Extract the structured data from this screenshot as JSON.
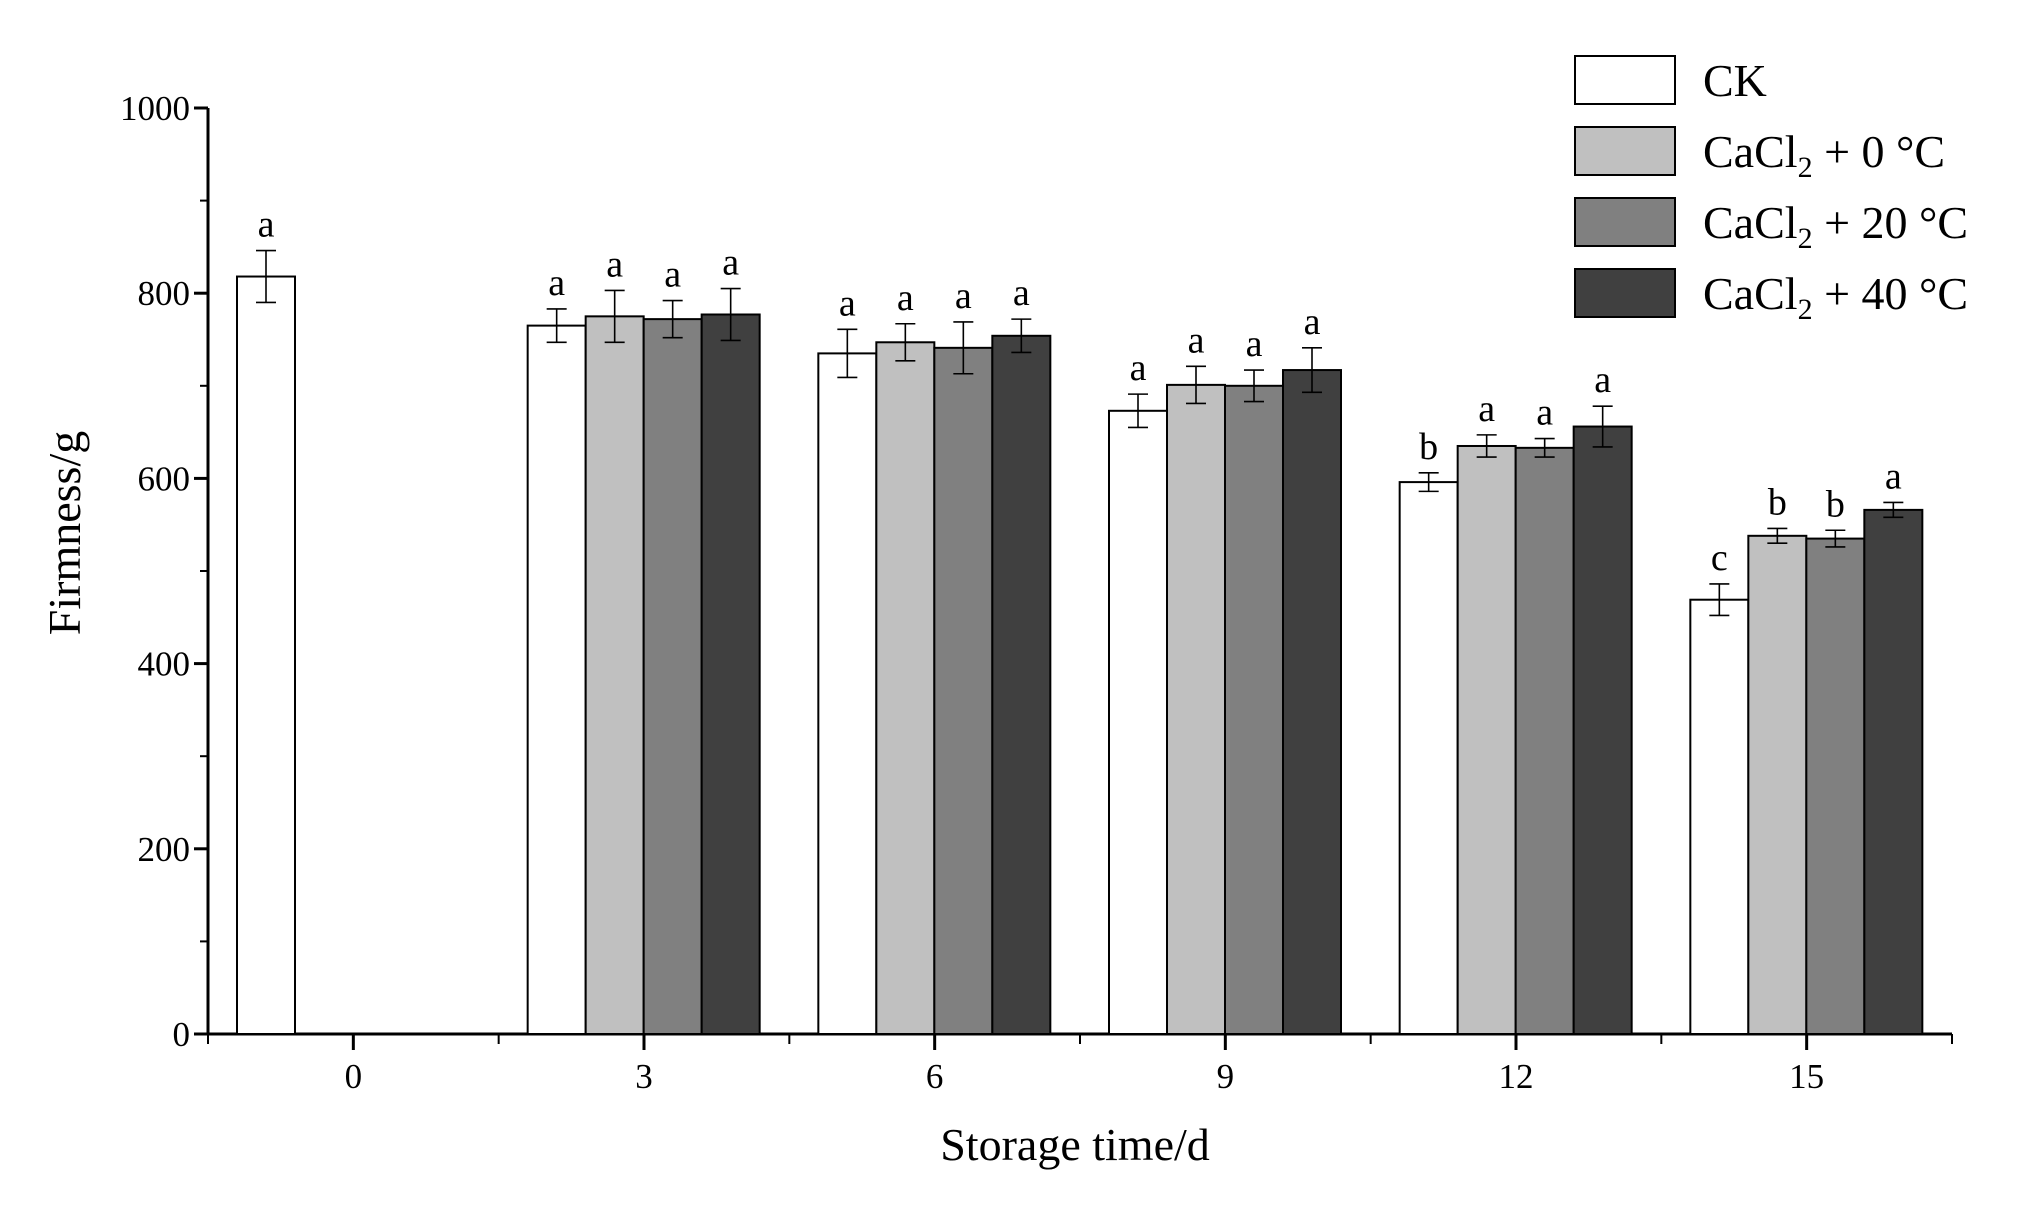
{
  "chart_data": {
    "type": "bar",
    "xlabel": "Storage time/d",
    "ylabel": "Firmness/g",
    "ylim": [
      0,
      1000
    ],
    "yticks": [
      "0",
      "200",
      "400",
      "600",
      "800",
      "1000"
    ],
    "categories": [
      "0",
      "3",
      "6",
      "9",
      "12",
      "15"
    ],
    "colors": [
      "#ffffff",
      "#c0c0c0",
      "#808080",
      "#404040"
    ],
    "legend_position": "top-right",
    "series": [
      {
        "name": "CK",
        "name_main": "CK",
        "name_sub": "",
        "name_tail": "",
        "values": [
          818,
          765,
          735,
          673,
          596,
          469
        ],
        "errors": [
          28,
          18,
          26,
          18,
          10,
          17
        ],
        "labels": [
          "a",
          "a",
          "a",
          "a",
          "b",
          "c"
        ]
      },
      {
        "name": "CaCl2 + 0 °C",
        "name_main": "CaCl",
        "name_sub": "2",
        "name_tail": " + 0 °C",
        "values": [
          null,
          775,
          747,
          701,
          635,
          538
        ],
        "errors": [
          null,
          28,
          20,
          20,
          12,
          8
        ],
        "labels": [
          "",
          "a",
          "a",
          "a",
          "a",
          "b"
        ]
      },
      {
        "name": "CaCl2 + 20 °C",
        "name_main": "CaCl",
        "name_sub": "2",
        "name_tail": " + 20 °C",
        "values": [
          null,
          772,
          741,
          700,
          633,
          535
        ],
        "errors": [
          null,
          20,
          28,
          17,
          10,
          9
        ],
        "labels": [
          "",
          "a",
          "a",
          "a",
          "a",
          "b"
        ]
      },
      {
        "name": "CaCl2 + 40 °C",
        "name_main": "CaCl",
        "name_sub": "2",
        "name_tail": " + 40 °C",
        "values": [
          null,
          777,
          754,
          717,
          656,
          566
        ],
        "errors": [
          null,
          28,
          18,
          24,
          22,
          8
        ],
        "labels": [
          "",
          "a",
          "a",
          "a",
          "a",
          "a"
        ]
      }
    ]
  }
}
